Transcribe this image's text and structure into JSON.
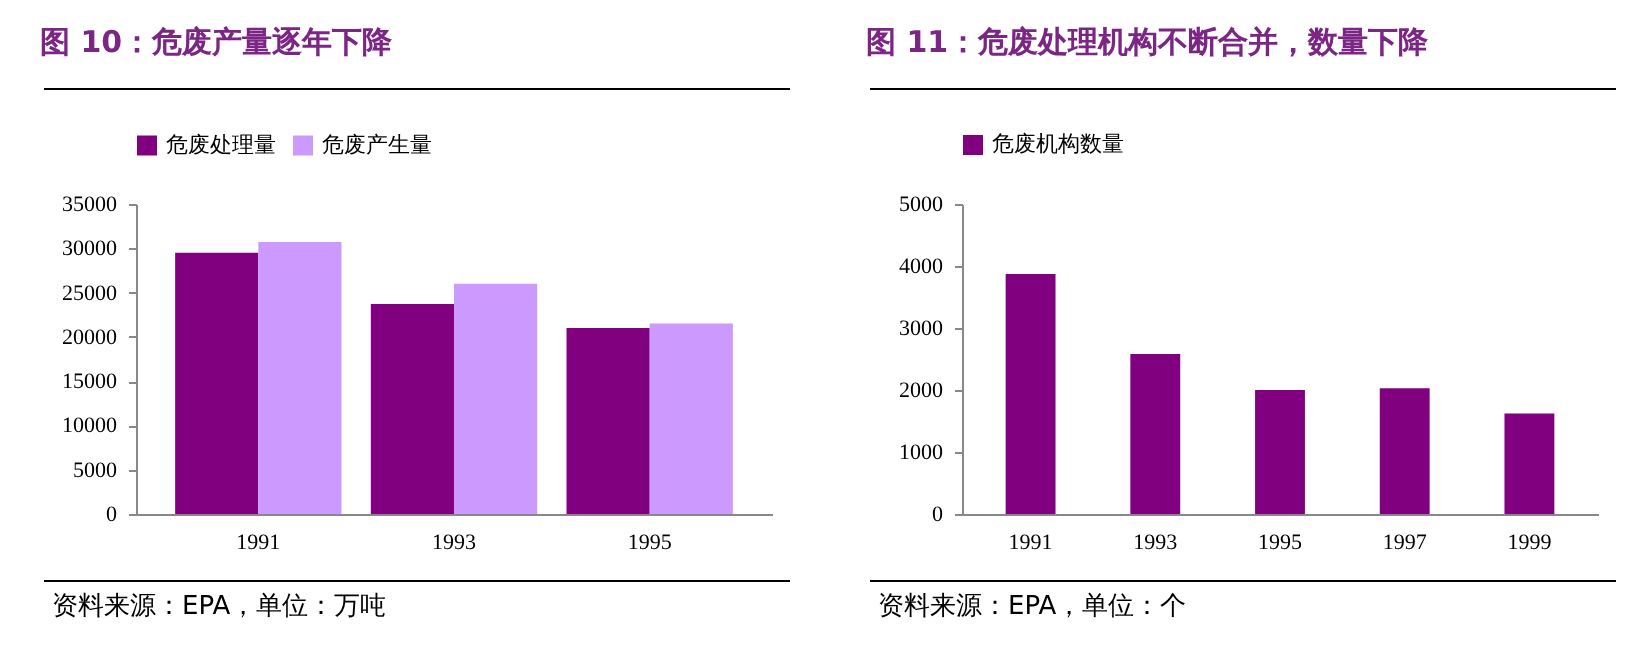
{
  "chart_data": [
    {
      "type": "bar",
      "title": "图 10：危废产量逐年下降",
      "categories": [
        "1991",
        "1993",
        "1995"
      ],
      "series": [
        {
          "name": "危废处理量",
          "color": "#800080",
          "values": [
            29500,
            23700,
            21000
          ]
        },
        {
          "name": "危废产生量",
          "color": "#cc99ff",
          "values": [
            30700,
            26000,
            21500
          ]
        }
      ],
      "ylim": [
        0,
        35000
      ],
      "yticks": [
        0,
        5000,
        10000,
        15000,
        20000,
        25000,
        30000,
        35000
      ],
      "grid": false,
      "legend": "top",
      "annotations": [
        "资料来源：EPA，单位：万吨"
      ]
    },
    {
      "type": "bar",
      "title": "图 11：危废处理机构不断合并，数量下降",
      "categories": [
        "1991",
        "1993",
        "1995",
        "1997",
        "1999"
      ],
      "series": [
        {
          "name": "危废机构数量",
          "color": "#800080",
          "values": [
            3870,
            2580,
            2000,
            2030,
            1620
          ]
        }
      ],
      "ylim": [
        0,
        5000
      ],
      "yticks": [
        0,
        1000,
        2000,
        3000,
        4000,
        5000
      ],
      "grid": false,
      "legend": "top",
      "annotations": [
        "资料来源：EPA，单位：个"
      ]
    }
  ]
}
